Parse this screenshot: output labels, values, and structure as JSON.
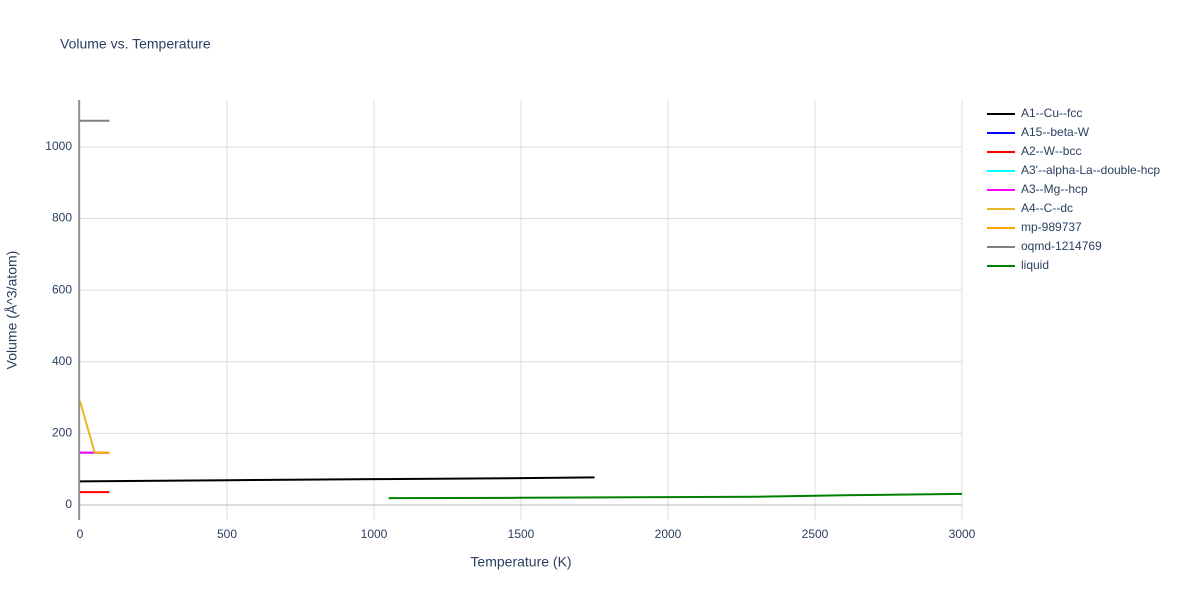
{
  "chart_data": {
    "type": "line",
    "title": "Volume vs. Temperature",
    "x_label": "Temperature (K)",
    "y_label": "Volume (Å^3/atom)",
    "xlim": [
      0,
      3000
    ],
    "ylim": [
      -42,
      1131
    ],
    "xticks": [
      0,
      500,
      1000,
      1500,
      2000,
      2500,
      3000
    ],
    "yticks": [
      0,
      200,
      400,
      600,
      800,
      1000
    ],
    "grid": true,
    "legend": "right",
    "series": [
      {
        "name": "A1--Cu--fcc",
        "color": "#000000",
        "x": [
          0,
          500,
          1000,
          1500,
          1750
        ],
        "values": [
          66,
          69,
          72,
          75,
          77
        ]
      },
      {
        "name": "A15--beta-W",
        "color": "#0000ff",
        "x": [
          0,
          100
        ],
        "values": [
          146,
          146
        ]
      },
      {
        "name": "A2--W--bcc",
        "color": "#ff0000",
        "x": [
          0,
          100
        ],
        "values": [
          36,
          36
        ]
      },
      {
        "name": "A3'--alpha-La--double-hcp",
        "color": "#00ffff",
        "x": [
          0,
          100
        ],
        "values": [
          146,
          146
        ]
      },
      {
        "name": "A3--Mg--hcp",
        "color": "#ff00ff",
        "x": [
          0,
          100
        ],
        "values": [
          146,
          146
        ]
      },
      {
        "name": "A4--C--dc",
        "color": "#e6b820",
        "x": [
          0,
          50,
          100
        ],
        "values": [
          290,
          146,
          146
        ]
      },
      {
        "name": "mp-989737",
        "color": "#ffa500",
        "x": [
          50,
          100
        ],
        "values": [
          146,
          146
        ]
      },
      {
        "name": "oqmd-1214769",
        "color": "#808080",
        "x": [
          0,
          100
        ],
        "values": [
          1073,
          1073
        ]
      },
      {
        "name": "liquid",
        "color": "#008000",
        "x": [
          1050,
          1500,
          2000,
          2300,
          2600,
          3000
        ],
        "values": [
          19,
          20,
          22,
          23,
          27,
          31
        ]
      }
    ]
  }
}
